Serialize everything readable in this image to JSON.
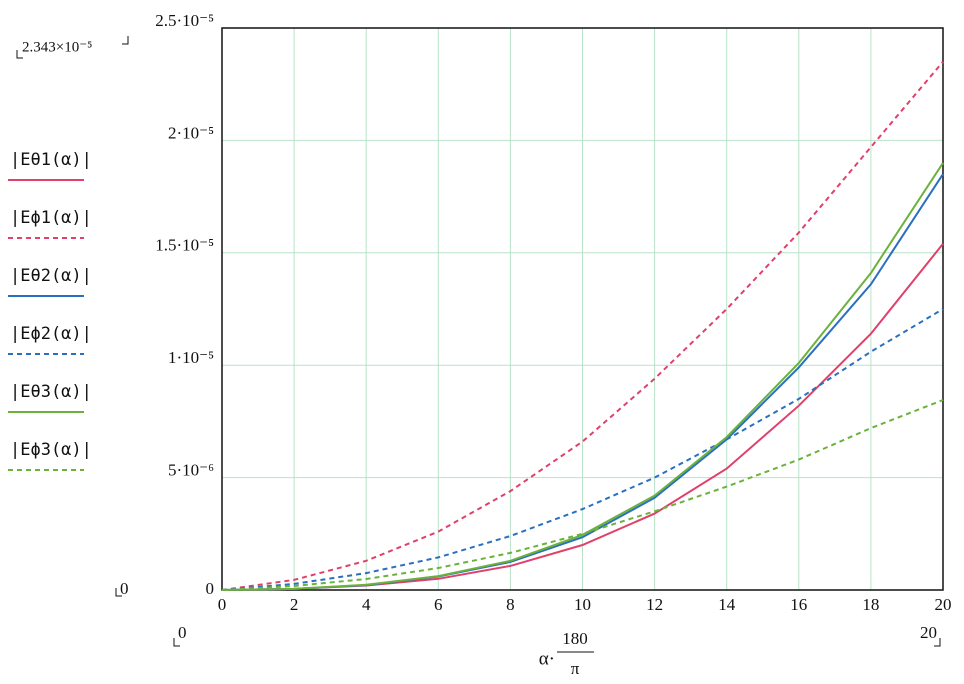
{
  "chart_data": {
    "type": "line",
    "x": [
      0,
      2,
      4,
      6,
      8,
      10,
      12,
      14,
      16,
      18,
      20
    ],
    "xlim": [
      0,
      20
    ],
    "xticks": [
      0,
      2,
      4,
      6,
      8,
      10,
      12,
      14,
      16,
      18,
      20
    ],
    "ylim": [
      0,
      2.5e-05
    ],
    "yticks": [
      {
        "value": 0,
        "label": "0"
      },
      {
        "value": 5e-06,
        "label": "5·10⁻⁶"
      },
      {
        "value": 1e-05,
        "label": "1·10⁻⁵"
      },
      {
        "value": 1.5e-05,
        "label": "1.5·10⁻⁵"
      },
      {
        "value": 2e-05,
        "label": "2·10⁻⁵"
      },
      {
        "value": 2.5e-05,
        "label": "2.5·10⁻⁵"
      }
    ],
    "grid": true,
    "grid_color": "#b9e2c9",
    "x_label": {
      "prefix": "α·",
      "numerator": "180",
      "denominator": "π"
    },
    "annotations": [
      "2.343×10⁻⁵",
      "0",
      "0",
      "20"
    ],
    "series": [
      {
        "name": "|Eθ1(α)|",
        "color": "#e0406a",
        "dash": false,
        "values": [
          0,
          5e-08,
          2e-07,
          5e-07,
          1.07e-06,
          2e-06,
          3.4e-06,
          5.4e-06,
          8.2e-06,
          1.14e-05,
          1.54e-05
        ]
      },
      {
        "name": "|Eϕ1(α)|",
        "color": "#e0406a",
        "dash": true,
        "values": [
          0,
          4.5e-07,
          1.3e-06,
          2.6e-06,
          4.4e-06,
          6.6e-06,
          9.4e-06,
          1.25e-05,
          1.59e-05,
          1.97e-05,
          2.35e-05
        ]
      },
      {
        "name": "|Eθ2(α)|",
        "color": "#2a6fc0",
        "dash": false,
        "values": [
          0,
          5e-08,
          2.2e-07,
          6e-07,
          1.25e-06,
          2.35e-06,
          4.1e-06,
          6.7e-06,
          9.9e-06,
          1.36e-05,
          1.85e-05
        ]
      },
      {
        "name": "|Eϕ2(α)|",
        "color": "#2a6fc0",
        "dash": true,
        "values": [
          0,
          2.7e-07,
          7.5e-07,
          1.45e-06,
          2.4e-06,
          3.6e-06,
          5e-06,
          6.7e-06,
          8.5e-06,
          1.06e-05,
          1.25e-05
        ]
      },
      {
        "name": "|Eθ3(α)|",
        "color": "#6ab23c",
        "dash": false,
        "values": [
          0,
          5e-08,
          2.3e-07,
          6.2e-07,
          1.3e-06,
          2.45e-06,
          4.2e-06,
          6.8e-06,
          1.01e-05,
          1.41e-05,
          1.9e-05
        ]
      },
      {
        "name": "|Eϕ3(α)|",
        "color": "#6ab23c",
        "dash": true,
        "values": [
          0,
          1.8e-07,
          4.9e-07,
          9.8e-07,
          1.65e-06,
          2.5e-06,
          3.5e-06,
          4.6e-06,
          5.8e-06,
          7.2e-06,
          8.45e-06
        ]
      }
    ]
  }
}
